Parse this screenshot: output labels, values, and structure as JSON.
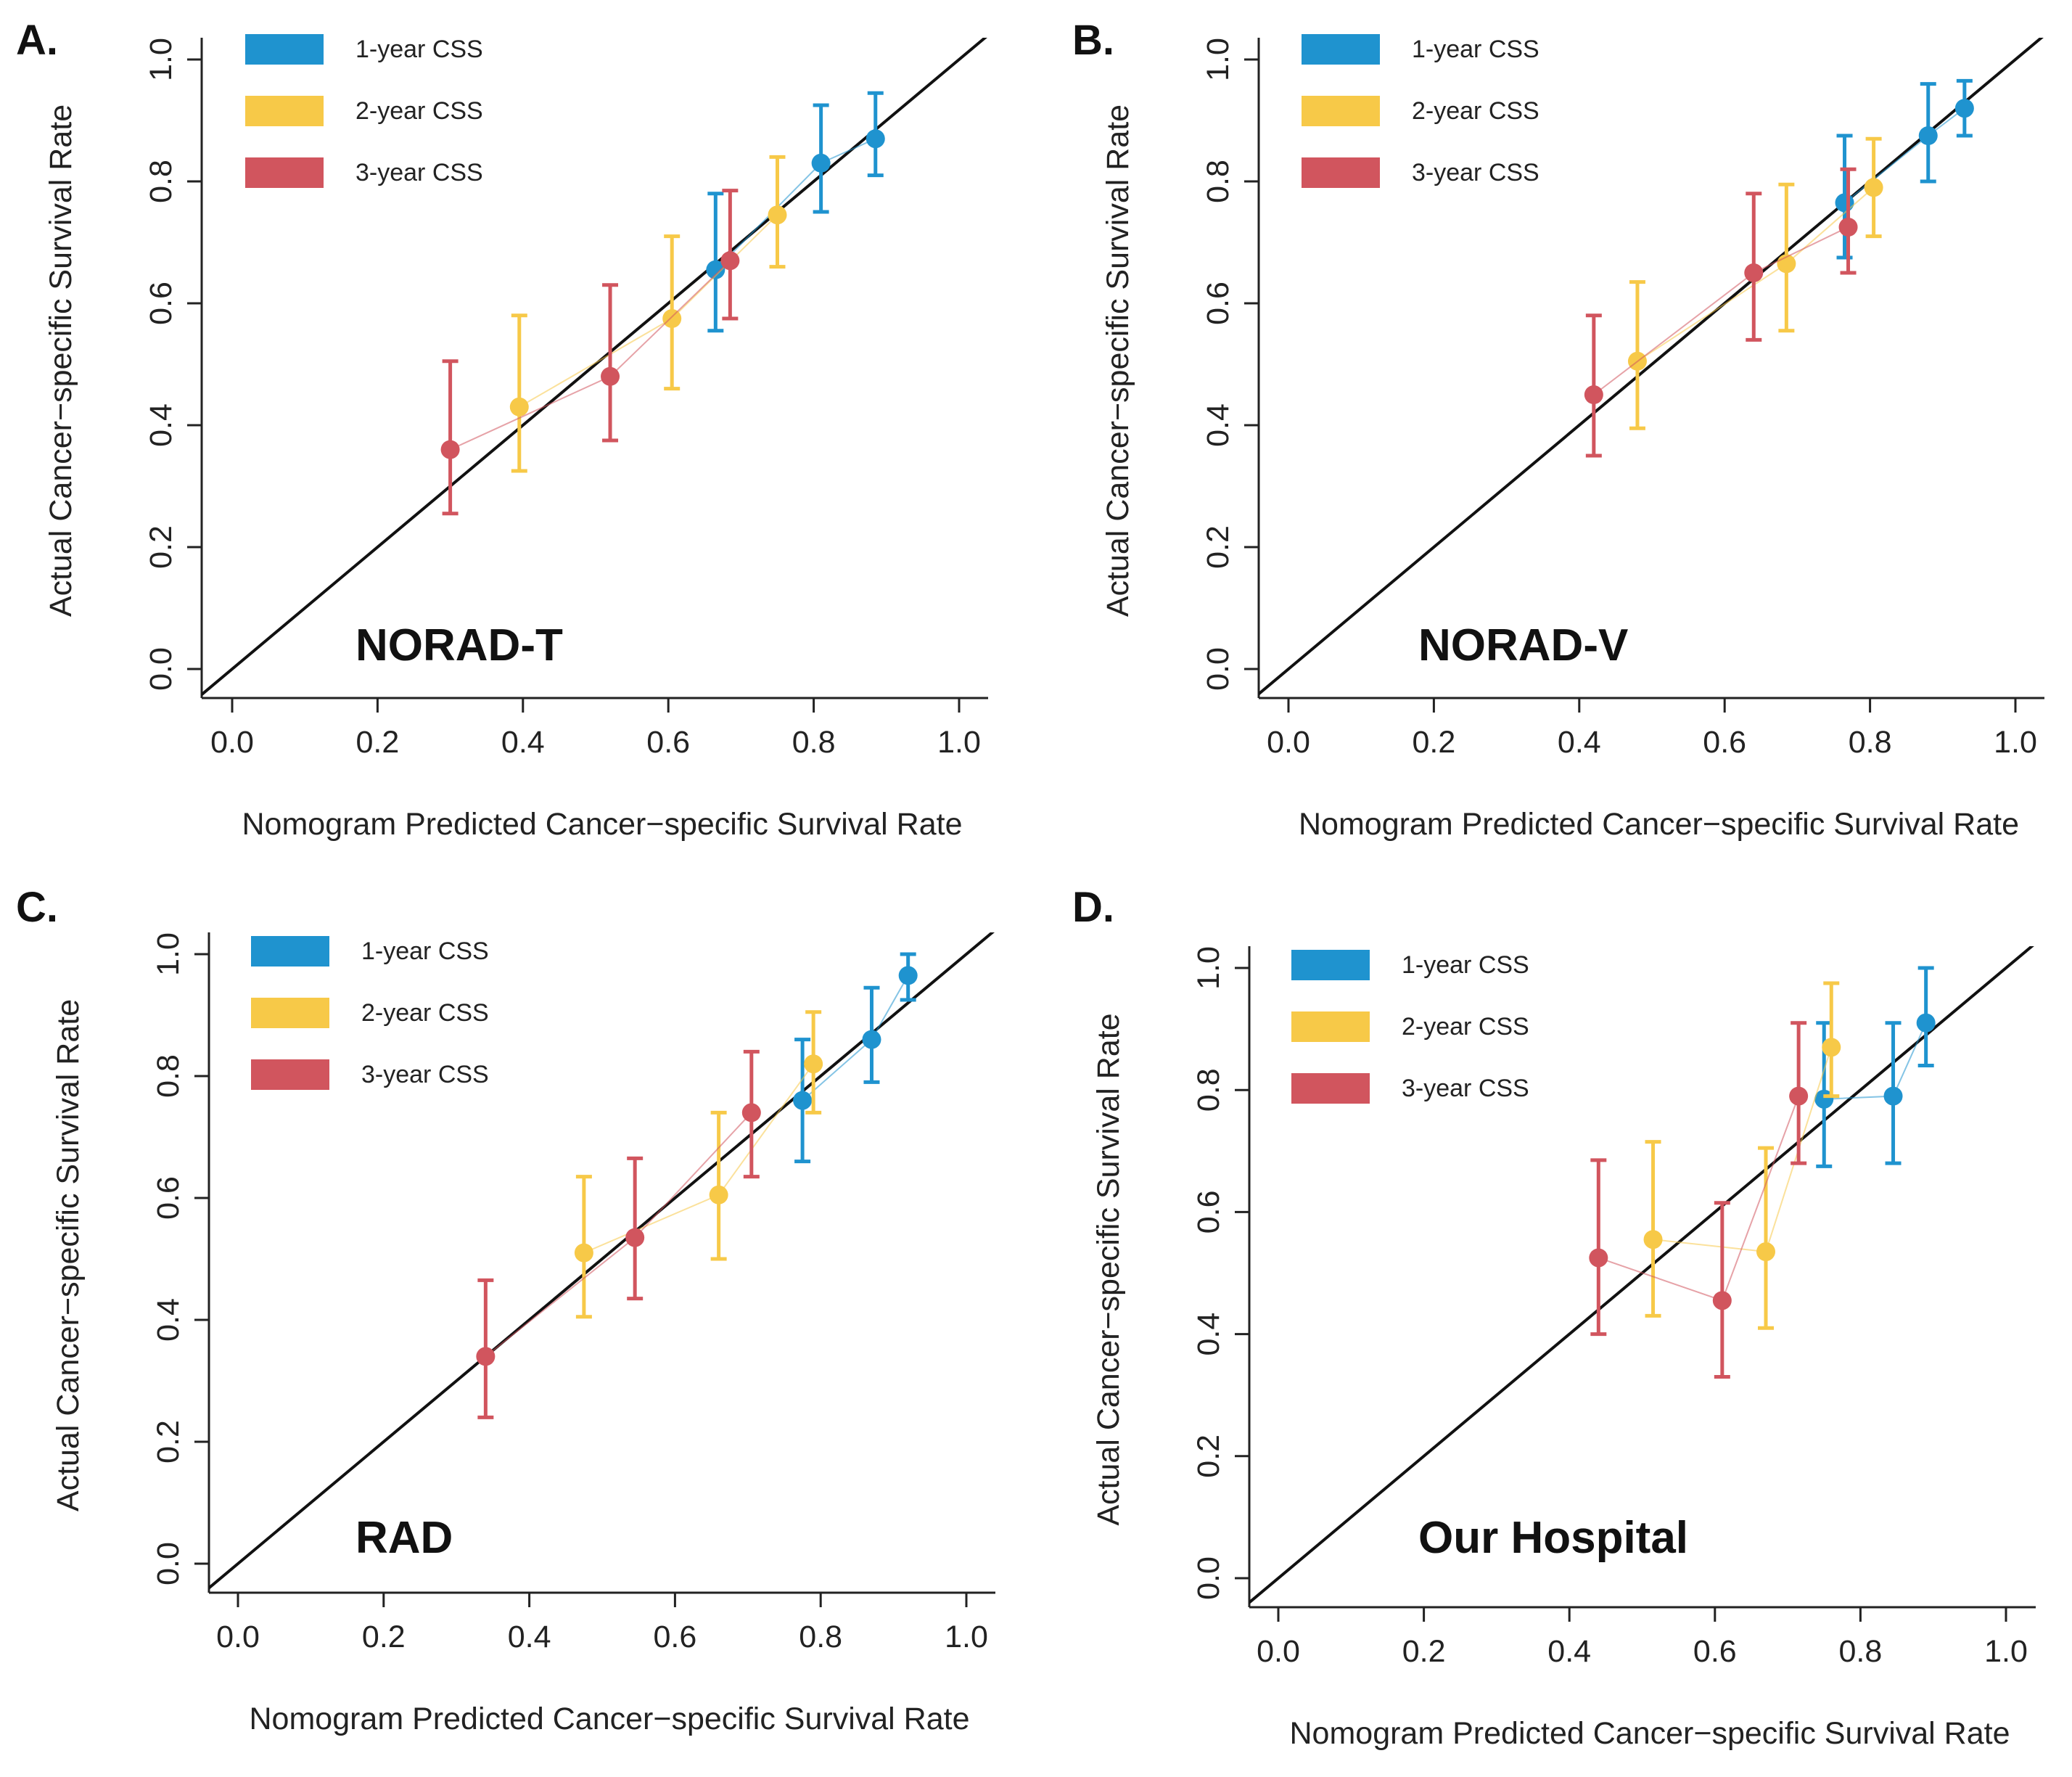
{
  "figure": {
    "colors": {
      "1-year": "#1f93cf",
      "2-year": "#f7c948",
      "3-year": "#d1555e",
      "reference": "#111111",
      "axis": "#222222"
    }
  },
  "chart_data": [
    {
      "type": "scatter",
      "panel_letter": "A.",
      "cohort": "NORAD-T",
      "xlabel": "Nomogram Predicted Cancer−specific Survival Rate",
      "ylabel": "Actual Cancer−specific Survival Rate",
      "xticks": [
        "0.0",
        "0.2",
        "0.4",
        "0.6",
        "0.8",
        "1.0"
      ],
      "yticks": [
        "0.0",
        "0.2",
        "0.4",
        "0.6",
        "0.8",
        "1.0"
      ],
      "xlim": [
        0,
        1
      ],
      "ylim": [
        0,
        1
      ],
      "reference_line": "y = x",
      "legend": [
        "1-year CSS",
        "2-year CSS",
        "3-year CSS"
      ],
      "series": [
        {
          "name": "1-year CSS",
          "color": "#1f93cf",
          "points": [
            {
              "x": 0.665,
              "y": 0.655,
              "lo": 0.555,
              "hi": 0.78
            },
            {
              "x": 0.81,
              "y": 0.83,
              "lo": 0.75,
              "hi": 0.925
            },
            {
              "x": 0.885,
              "y": 0.87,
              "lo": 0.81,
              "hi": 0.945
            }
          ]
        },
        {
          "name": "2-year CSS",
          "color": "#f7c948",
          "points": [
            {
              "x": 0.395,
              "y": 0.43,
              "lo": 0.325,
              "hi": 0.58
            },
            {
              "x": 0.605,
              "y": 0.575,
              "lo": 0.46,
              "hi": 0.71
            },
            {
              "x": 0.75,
              "y": 0.745,
              "lo": 0.66,
              "hi": 0.84
            }
          ]
        },
        {
          "name": "3-year CSS",
          "color": "#d1555e",
          "points": [
            {
              "x": 0.3,
              "y": 0.36,
              "lo": 0.255,
              "hi": 0.505
            },
            {
              "x": 0.52,
              "y": 0.48,
              "lo": 0.375,
              "hi": 0.63
            },
            {
              "x": 0.685,
              "y": 0.67,
              "lo": 0.575,
              "hi": 0.785
            }
          ]
        }
      ]
    },
    {
      "type": "scatter",
      "panel_letter": "B.",
      "cohort": "NORAD-V",
      "xlabel": "Nomogram Predicted Cancer−specific Survival Rate",
      "ylabel": "Actual Cancer−specific Survival Rate",
      "xticks": [
        "0.0",
        "0.2",
        "0.4",
        "0.6",
        "0.8",
        "1.0"
      ],
      "yticks": [
        "0.0",
        "0.2",
        "0.4",
        "0.6",
        "0.8",
        "1.0"
      ],
      "xlim": [
        0,
        1
      ],
      "ylim": [
        0,
        1
      ],
      "reference_line": "y = x",
      "legend": [
        "1-year CSS",
        "2-year CSS",
        "3-year CSS"
      ],
      "series": [
        {
          "name": "1-year CSS",
          "color": "#1f93cf",
          "points": [
            {
              "x": 0.765,
              "y": 0.765,
              "lo": 0.675,
              "hi": 0.875
            },
            {
              "x": 0.88,
              "y": 0.875,
              "lo": 0.8,
              "hi": 0.96
            },
            {
              "x": 0.93,
              "y": 0.92,
              "lo": 0.875,
              "hi": 0.965
            }
          ]
        },
        {
          "name": "2-year CSS",
          "color": "#f7c948",
          "points": [
            {
              "x": 0.48,
              "y": 0.505,
              "lo": 0.395,
              "hi": 0.635
            },
            {
              "x": 0.685,
              "y": 0.665,
              "lo": 0.555,
              "hi": 0.795
            },
            {
              "x": 0.805,
              "y": 0.79,
              "lo": 0.71,
              "hi": 0.87
            }
          ]
        },
        {
          "name": "3-year CSS",
          "color": "#d1555e",
          "points": [
            {
              "x": 0.42,
              "y": 0.45,
              "lo": 0.35,
              "hi": 0.58
            },
            {
              "x": 0.64,
              "y": 0.65,
              "lo": 0.54,
              "hi": 0.78
            },
            {
              "x": 0.77,
              "y": 0.725,
              "lo": 0.65,
              "hi": 0.82
            }
          ]
        }
      ]
    },
    {
      "type": "scatter",
      "panel_letter": "C.",
      "cohort": "RAD",
      "xlabel": "Nomogram Predicted Cancer−specific Survival Rate",
      "ylabel": "Actual Cancer−specific Survival Rate",
      "xticks": [
        "0.0",
        "0.2",
        "0.4",
        "0.6",
        "0.8",
        "1.0"
      ],
      "yticks": [
        "0.0",
        "0.2",
        "0.4",
        "0.6",
        "0.8",
        "1.0"
      ],
      "xlim": [
        0,
        1
      ],
      "ylim": [
        0,
        1
      ],
      "reference_line": "y = x",
      "legend": [
        "1-year CSS",
        "2-year CSS",
        "3-year CSS"
      ],
      "series": [
        {
          "name": "1-year CSS",
          "color": "#1f93cf",
          "points": [
            {
              "x": 0.775,
              "y": 0.76,
              "lo": 0.66,
              "hi": 0.86
            },
            {
              "x": 0.87,
              "y": 0.86,
              "lo": 0.79,
              "hi": 0.945
            },
            {
              "x": 0.92,
              "y": 0.965,
              "lo": 0.925,
              "hi": 1.0
            }
          ]
        },
        {
          "name": "2-year CSS",
          "color": "#f7c948",
          "points": [
            {
              "x": 0.475,
              "y": 0.51,
              "lo": 0.405,
              "hi": 0.635
            },
            {
              "x": 0.66,
              "y": 0.605,
              "lo": 0.5,
              "hi": 0.74
            },
            {
              "x": 0.79,
              "y": 0.82,
              "lo": 0.74,
              "hi": 0.905
            }
          ]
        },
        {
          "name": "3-year CSS",
          "color": "#d1555e",
          "points": [
            {
              "x": 0.34,
              "y": 0.34,
              "lo": 0.24,
              "hi": 0.465
            },
            {
              "x": 0.545,
              "y": 0.535,
              "lo": 0.435,
              "hi": 0.665
            },
            {
              "x": 0.705,
              "y": 0.74,
              "lo": 0.635,
              "hi": 0.84
            }
          ]
        }
      ]
    },
    {
      "type": "scatter",
      "panel_letter": "D.",
      "cohort": "Our Hospital",
      "xlabel": "Nomogram Predicted Cancer−specific Survival Rate",
      "ylabel": "Actual Cancer−specific Survival Rate",
      "xticks": [
        "0.0",
        "0.2",
        "0.4",
        "0.6",
        "0.8",
        "1.0"
      ],
      "yticks": [
        "0.0",
        "0.2",
        "0.4",
        "0.6",
        "0.8",
        "1.0"
      ],
      "xlim": [
        0,
        1
      ],
      "ylim": [
        0,
        1
      ],
      "reference_line": "y = x",
      "legend": [
        "1-year CSS",
        "2-year CSS",
        "3-year CSS"
      ],
      "series": [
        {
          "name": "1-year CSS",
          "color": "#1f93cf",
          "points": [
            {
              "x": 0.75,
              "y": 0.785,
              "lo": 0.675,
              "hi": 0.91
            },
            {
              "x": 0.845,
              "y": 0.79,
              "lo": 0.68,
              "hi": 0.91
            },
            {
              "x": 0.89,
              "y": 0.91,
              "lo": 0.84,
              "hi": 1.0
            }
          ]
        },
        {
          "name": "2-year CSS",
          "color": "#f7c948",
          "points": [
            {
              "x": 0.515,
              "y": 0.555,
              "lo": 0.43,
              "hi": 0.715
            },
            {
              "x": 0.67,
              "y": 0.535,
              "lo": 0.41,
              "hi": 0.705
            },
            {
              "x": 0.76,
              "y": 0.87,
              "lo": 0.79,
              "hi": 0.975
            }
          ]
        },
        {
          "name": "3-year CSS",
          "color": "#d1555e",
          "points": [
            {
              "x": 0.44,
              "y": 0.525,
              "lo": 0.4,
              "hi": 0.685
            },
            {
              "x": 0.61,
              "y": 0.455,
              "lo": 0.33,
              "hi": 0.615
            },
            {
              "x": 0.715,
              "y": 0.79,
              "lo": 0.68,
              "hi": 0.91
            }
          ]
        }
      ]
    }
  ]
}
